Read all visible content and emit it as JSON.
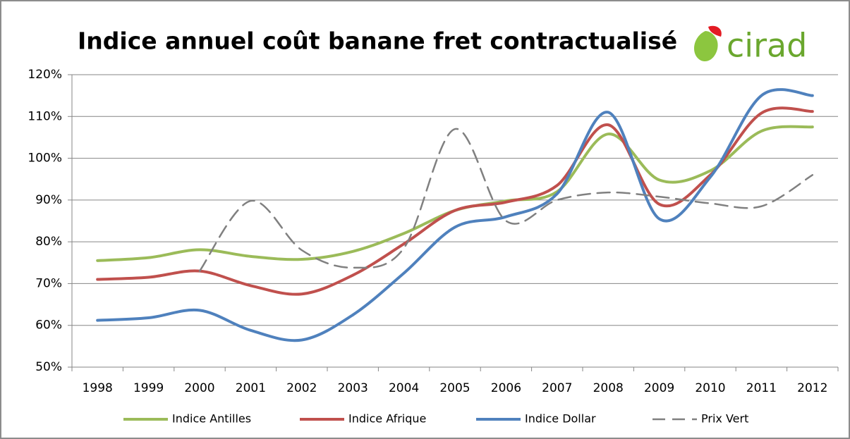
{
  "logo": {
    "text": "cirad"
  },
  "chart_data": {
    "type": "line",
    "title": "Indice annuel coût banane fret contractualisé",
    "categories": [
      "1998",
      "1999",
      "2000",
      "2001",
      "2002",
      "2003",
      "2004",
      "2005",
      "2006",
      "2007",
      "2008",
      "2009",
      "2010",
      "2011",
      "2012"
    ],
    "series": [
      {
        "name": "Indice Antilles",
        "color": "#9bbb59",
        "style": "solid",
        "values": [
          75.5,
          76.2,
          78.1,
          76.5,
          75.8,
          77.7,
          82,
          87.5,
          89.8,
          92,
          105.8,
          94.8,
          97,
          106.5,
          107.5
        ]
      },
      {
        "name": "Indice Afrique",
        "color": "#c0504d",
        "style": "solid",
        "values": [
          71,
          71.5,
          73,
          69.5,
          67.5,
          72,
          79.5,
          87.5,
          89.5,
          93.5,
          108,
          89,
          96,
          110.8,
          111.2
        ]
      },
      {
        "name": "Indice Dollar",
        "color": "#4f81bd",
        "style": "solid",
        "values": [
          61.2,
          61.8,
          63.6,
          58.8,
          56.5,
          62.5,
          72.5,
          83.5,
          86,
          91.5,
          111,
          85.5,
          95.5,
          115,
          115
        ]
      },
      {
        "name": "Prix Vert",
        "color": "#808080",
        "style": "dashed",
        "values": [
          null,
          null,
          73,
          89.8,
          78,
          73.8,
          78.5,
          107,
          85,
          90,
          91.8,
          90.8,
          89.2,
          88.5,
          96
        ]
      }
    ],
    "ylim": [
      50,
      120
    ],
    "yticks": [
      {
        "value": 50,
        "label": "50%"
      },
      {
        "value": 60,
        "label": "60%"
      },
      {
        "value": 70,
        "label": "70%"
      },
      {
        "value": 80,
        "label": "80%"
      },
      {
        "value": 90,
        "label": "90%"
      },
      {
        "value": 100,
        "label": "100%"
      },
      {
        "value": 110,
        "label": "110%"
      },
      {
        "value": 120,
        "label": "120%"
      }
    ],
    "grid": true,
    "legend": "bottom"
  }
}
